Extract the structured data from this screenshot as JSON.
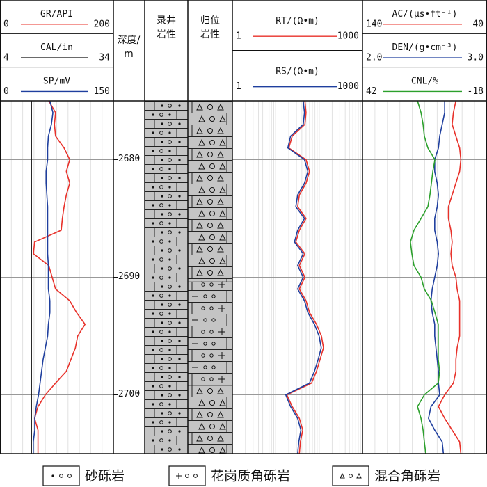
{
  "chart_data": {
    "type": "well-log",
    "depth": [
      2675,
      2676,
      2677,
      2678,
      2679,
      2680,
      2681,
      2682,
      2683,
      2684,
      2685,
      2686,
      2687,
      2688,
      2689,
      2690,
      2691,
      2692,
      2693,
      2694,
      2695,
      2696,
      2697,
      2698,
      2699,
      2700,
      2701,
      2702,
      2703,
      2704,
      2705
    ],
    "ylim": [
      2675,
      2705
    ],
    "yticks": [
      2680,
      2690,
      2700
    ],
    "depth_title": "深度/m",
    "tracks": [
      {
        "grid": "linear",
        "curves": [
          {
            "name": "GR/API",
            "color": "#e8312a",
            "xlim": [
              0,
              200
            ],
            "values": [
              86,
              98,
              96,
              98,
              113,
              123,
              117,
              123,
              117,
              113,
              110,
              108,
              61,
              59,
              86,
              92,
              98,
              123,
              135,
              150,
              137,
              133,
              125,
              117,
              98,
              80,
              67,
              61,
              67,
              67,
              67
            ]
          },
          {
            "name": "CAL/in",
            "color": "#111111",
            "xlim": [
              4,
              34
            ],
            "values": [
              12.3,
              12.3,
              12.3,
              12.3,
              12.3,
              12.3,
              12.3,
              12.3,
              12.3,
              12.3,
              12.3,
              12.3,
              12.3,
              12.3,
              12.3,
              12.3,
              12.3,
              12.3,
              12.3,
              12.3,
              12.3,
              12.3,
              12.3,
              12.3,
              12.3,
              12.3,
              12.3,
              12.3,
              12.3,
              12.3,
              12.3
            ]
          },
          {
            "name": "SP/mV",
            "color": "#1f3f9e",
            "xlim": [
              0,
              150
            ],
            "values": [
              66,
              70,
              68,
              64,
              63,
              63,
              61,
              61,
              62,
              63,
              63,
              63,
              63,
              63,
              64,
              64,
              64,
              66,
              66,
              64,
              63,
              60,
              57,
              55,
              53,
              51,
              48,
              46,
              46,
              44,
              44
            ]
          }
        ]
      },
      {
        "grid": "log",
        "curves": [
          {
            "name": "RT/(Ω•m)",
            "color": "#e8312a",
            "xlim": [
              1,
              1000
            ],
            "log": true,
            "values": [
              47,
              50,
              47,
              24,
              20,
              50,
              60,
              50,
              35,
              32,
              50,
              35,
              29,
              47,
              35,
              47,
              35,
              50,
              60,
              87,
              113,
              126,
              105,
              87,
              67,
              18,
              24,
              35,
              42,
              37,
              35
            ]
          },
          {
            "name": "RS/(Ω•m)",
            "color": "#1f3f9e",
            "xlim": [
              1,
              1000
            ],
            "log": true,
            "values": [
              43,
              46,
              43,
              22,
              19,
              46,
              55,
              46,
              32,
              29,
              46,
              32,
              27,
              43,
              32,
              43,
              32,
              46,
              55,
              78,
              100,
              112,
              95,
              78,
              60,
              17,
              22,
              32,
              38,
              34,
              32
            ]
          }
        ]
      },
      {
        "grid": "linear",
        "curves": [
          {
            "name": "AC/(μs•ft⁻¹)",
            "color": "#e8312a",
            "xlim": [
              140,
              40
            ],
            "values": [
              65,
              67,
              68,
              65,
              62,
              61,
              62,
              65,
              68,
              71,
              71,
              69,
              68,
              69,
              68,
              65,
              64,
              62,
              62,
              62,
              62,
              64,
              65,
              65,
              67,
              74,
              79,
              74,
              68,
              62,
              61
            ]
          },
          {
            "name": "DEN/(g•cm⁻³)",
            "color": "#1f3f9e",
            "xlim": [
              {
                "value": 2,
                "label": "2.0"
              },
              {
                "value": 3,
                "label": "3.0"
              }
            ],
            "values": [
              2.66,
              2.66,
              2.64,
              2.62,
              2.61,
              2.58,
              2.58,
              2.6,
              2.61,
              2.6,
              2.58,
              2.58,
              2.6,
              2.61,
              2.6,
              2.58,
              2.56,
              2.55,
              2.56,
              2.58,
              2.58,
              2.59,
              2.6,
              2.61,
              2.61,
              2.62,
              2.55,
              2.53,
              2.58,
              2.64,
              2.65
            ]
          },
          {
            "name": "CNL/%",
            "color": "#2ca02c",
            "xlim": [
              42,
              -18
            ],
            "values": [
              15.5,
              13.8,
              12.8,
              12.2,
              10.5,
              7.1,
              8.1,
              8.8,
              9.5,
              10.5,
              13.8,
              17.2,
              18.9,
              18.2,
              17.2,
              13.8,
              12.2,
              8.8,
              7.1,
              5.5,
              5.5,
              5.5,
              5.5,
              4.8,
              5.5,
              12.2,
              15.5,
              13.8,
              12.8,
              12.2,
              11.5
            ]
          }
        ]
      }
    ],
    "lith_columns": [
      {
        "title": "录井岩性",
        "layers": [
          {
            "pattern": "sand",
            "top": 2675,
            "bottom": 2705
          }
        ]
      },
      {
        "title": "归位岩性",
        "layers": [
          {
            "pattern": "mixed",
            "top": 2675,
            "bottom": 2690.4
          },
          {
            "pattern": "granite",
            "top": 2690.4,
            "bottom": 2699.2
          },
          {
            "pattern": "mixed",
            "top": 2699.2,
            "bottom": 2705
          }
        ]
      }
    ],
    "legend": [
      {
        "pattern": "sand",
        "label": "砂砾岩"
      },
      {
        "pattern": "granite",
        "label": "花岗质角砾岩"
      },
      {
        "pattern": "mixed",
        "label": "混合角砾岩"
      }
    ]
  }
}
